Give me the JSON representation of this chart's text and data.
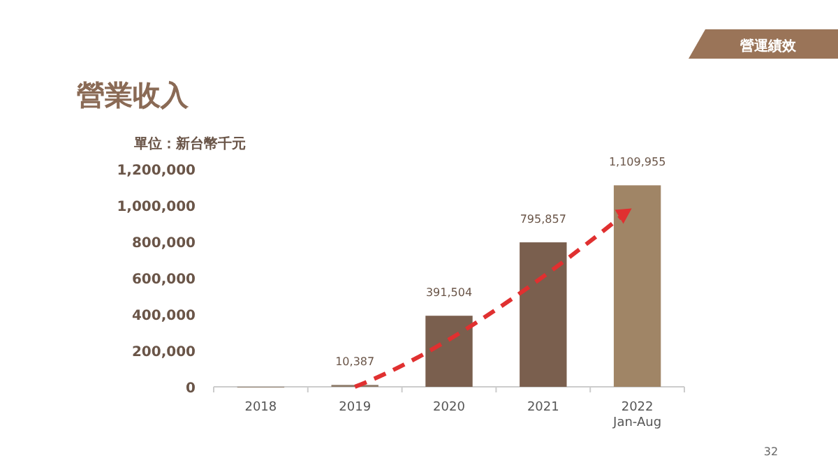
{
  "chart_data": {
    "type": "bar",
    "title": "營業收入",
    "ylabel": "單位：新台幣千元",
    "annotations": [
      "營運績效",
      "32"
    ],
    "categories": [
      "2018",
      "2019",
      "2020",
      "2021",
      "2022\nJan-Aug"
    ],
    "values": [
      0,
      10387,
      391504,
      795857,
      1109955
    ],
    "colors": [
      "#8c7a68",
      "#8c7a68",
      "#7a5f4e",
      "#7a5f4e",
      "#a08566"
    ],
    "value_labels": [
      null,
      "10,387",
      "391,504",
      "795,857",
      "1,109,955"
    ],
    "ylim": [
      0,
      1200000
    ],
    "yticks": [
      {
        "value": 0,
        "label": "0"
      },
      {
        "value": 200000,
        "label": "200,000"
      },
      {
        "value": 400000,
        "label": "400,000"
      },
      {
        "value": 600000,
        "label": "600,000"
      },
      {
        "value": 800000,
        "label": "800,000"
      },
      {
        "value": 1000000,
        "label": "1,000,000"
      },
      {
        "value": 1200000,
        "label": "1,200,000"
      }
    ]
  }
}
